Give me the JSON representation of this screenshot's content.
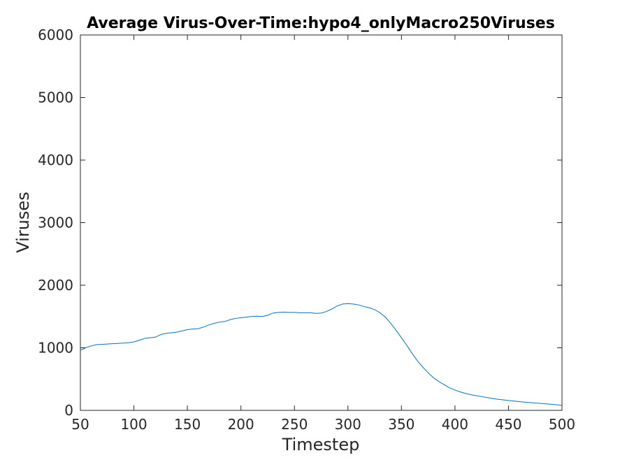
{
  "chart_data": {
    "type": "line",
    "title": "Average Virus-Over-Time:hypo4_onlyMacro250Viruses",
    "xlabel": "Timestep",
    "ylabel": "Viruses",
    "xlim": [
      50,
      500
    ],
    "ylim": [
      0,
      6000
    ],
    "xticks": [
      50,
      100,
      150,
      200,
      250,
      300,
      350,
      400,
      450,
      500
    ],
    "yticks": [
      0,
      1000,
      2000,
      3000,
      4000,
      5000,
      6000
    ],
    "grid": false,
    "line_color": "#0072bd",
    "series": [
      {
        "x": [
          50,
          55,
          60,
          65,
          70,
          75,
          80,
          85,
          90,
          95,
          100,
          105,
          110,
          115,
          120,
          125,
          130,
          135,
          140,
          145,
          150,
          155,
          160,
          165,
          170,
          175,
          180,
          185,
          190,
          195,
          200,
          205,
          210,
          215,
          220,
          225,
          230,
          235,
          240,
          245,
          250,
          255,
          260,
          265,
          270,
          275,
          280,
          285,
          290,
          295,
          300,
          305,
          310,
          315,
          320,
          325,
          330,
          335,
          340,
          345,
          350,
          355,
          360,
          365,
          370,
          375,
          380,
          385,
          390,
          395,
          400,
          405,
          410,
          415,
          420,
          425,
          430,
          435,
          440,
          445,
          450,
          455,
          460,
          465,
          470,
          475,
          480,
          485,
          490,
          495,
          500
        ],
        "values": [
          960,
          1000,
          1030,
          1050,
          1055,
          1060,
          1065,
          1070,
          1075,
          1080,
          1095,
          1120,
          1150,
          1160,
          1170,
          1210,
          1230,
          1240,
          1250,
          1270,
          1290,
          1300,
          1305,
          1330,
          1365,
          1390,
          1410,
          1420,
          1450,
          1470,
          1480,
          1490,
          1500,
          1505,
          1500,
          1520,
          1555,
          1565,
          1570,
          1565,
          1565,
          1560,
          1560,
          1560,
          1550,
          1555,
          1580,
          1620,
          1670,
          1700,
          1705,
          1700,
          1685,
          1660,
          1640,
          1610,
          1560,
          1490,
          1390,
          1280,
          1160,
          1040,
          910,
          790,
          690,
          600,
          520,
          460,
          410,
          360,
          325,
          295,
          270,
          250,
          235,
          220,
          205,
          190,
          178,
          168,
          158,
          150,
          140,
          132,
          125,
          118,
          112,
          105,
          98,
          90,
          80
        ]
      }
    ]
  }
}
